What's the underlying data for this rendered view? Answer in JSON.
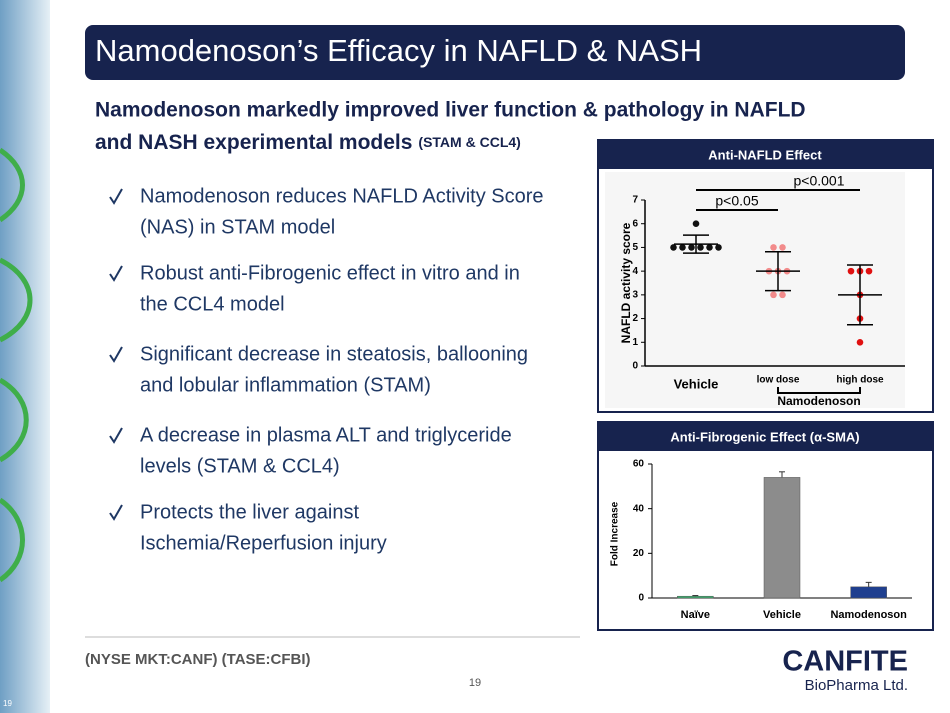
{
  "header": {
    "title": "Namodenoson’s Efficacy in NAFLD & NASH"
  },
  "subtitle": {
    "line1": "Namodenoson  markedly improved liver function & pathology in NAFLD",
    "line2": "and NASH experimental models",
    "note": "(STAM & CCL4)"
  },
  "bullets": [
    [
      "Namodenoson reduces NAFLD Activity Score",
      "(NAS) in STAM model"
    ],
    [
      "Robust anti-Fibrogenic effect in vitro and in",
      "the CCL4 model"
    ],
    [
      "Significant decrease in steatosis, ballooning",
      "and lobular inflammation (STAM)"
    ],
    [
      "A decrease in plasma ALT and triglyceride",
      "levels (STAM & CCL4)"
    ],
    [
      "Protects the liver against",
      "Ischemia/Reperfusion injury"
    ]
  ],
  "chart_data": [
    {
      "type": "dot",
      "panel_title": "Anti-NAFLD Effect",
      "y_label": "NAFLD activity score",
      "categories": [
        "Vehicle",
        "low dose",
        "high dose"
      ],
      "group_label": "Namodenoson",
      "groups": [
        {
          "color": "#111111",
          "values": [
            6,
            5,
            5,
            5,
            5,
            5,
            5
          ],
          "mean": 5.14,
          "sd": 0.38
        },
        {
          "color": "#f28b8b",
          "values": [
            5,
            5,
            4,
            4,
            4,
            3,
            3
          ],
          "mean": 4.0,
          "sd": 0.82
        },
        {
          "color": "#e01010",
          "values": [
            4,
            4,
            4,
            3,
            2,
            1
          ],
          "mean": 3.0,
          "sd": 1.26
        }
      ],
      "annotations": [
        "p<0.05",
        "p<0.001"
      ],
      "ylim": [
        0,
        7
      ],
      "yticks": [
        0,
        1,
        2,
        3,
        4,
        5,
        6,
        7
      ]
    },
    {
      "type": "bar",
      "panel_title": "Anti-Fibrogenic Effect (α-SMA)",
      "y_label": "Fold Increase",
      "categories": [
        "Naïve",
        "Vehicle",
        "Namodenoson"
      ],
      "values": [
        0.8,
        54,
        5
      ],
      "errors": [
        0.3,
        2.5,
        2
      ],
      "colors": [
        "#3cb371",
        "#8c8c8c",
        "#1f3f8f"
      ],
      "ylim": [
        0,
        60
      ],
      "yticks": [
        0,
        20,
        40,
        60
      ]
    }
  ],
  "footer": {
    "tickers": "(NYSE MKT:CANF)  (TASE:CFBI)",
    "page_number": "19",
    "corner_number": "19"
  },
  "logo": {
    "name": "CANFITE",
    "tagline": "BioPharma Ltd."
  }
}
